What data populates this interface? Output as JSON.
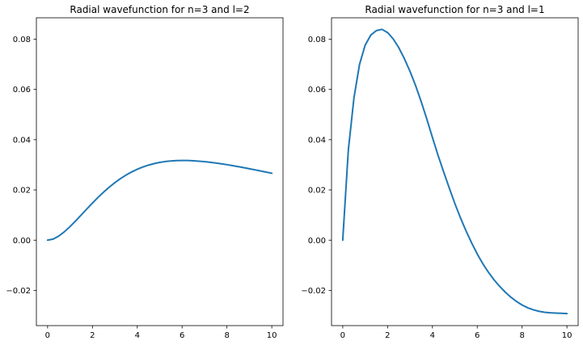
{
  "chart_data": [
    {
      "type": "line",
      "title": "Radial wavefunction for n=3 and l=2",
      "xlabel": "",
      "ylabel": "",
      "xlim": [
        -0.5,
        10.5
      ],
      "ylim": [
        -0.034,
        0.0885
      ],
      "xticks": [
        0,
        2,
        4,
        6,
        8,
        10
      ],
      "yticks": [
        -0.02,
        0.0,
        0.02,
        0.04,
        0.06,
        0.08
      ],
      "xtick_labels": [
        "0",
        "2",
        "4",
        "6",
        "8",
        "10"
      ],
      "ytick_labels": [
        "−0.02",
        "0.00",
        "0.02",
        "0.04",
        "0.06",
        "0.08"
      ],
      "grid": false,
      "color": "#1f77b4",
      "series": [
        {
          "x": [
            0,
            0.25,
            0.5,
            0.75,
            1,
            1.25,
            1.5,
            1.75,
            2,
            2.25,
            2.5,
            2.75,
            3,
            3.25,
            3.5,
            3.75,
            4,
            4.25,
            4.5,
            4.75,
            5,
            5.25,
            5.5,
            5.75,
            6,
            6.25,
            6.5,
            6.75,
            7,
            7.25,
            7.5,
            7.75,
            8,
            8.25,
            8.5,
            8.75,
            9,
            9.25,
            9.5,
            9.75,
            10
          ],
          "y": [
            0,
            0.00045,
            0.00165,
            0.00336,
            0.00541,
            0.00767,
            0.01003,
            0.01242,
            0.01477,
            0.01702,
            0.01914,
            0.0211,
            0.02288,
            0.02449,
            0.02591,
            0.02715,
            0.02822,
            0.02912,
            0.02987,
            0.03047,
            0.03094,
            0.03129,
            0.03153,
            0.03167,
            0.03172,
            0.0317,
            0.0316,
            0.03145,
            0.03125,
            0.031,
            0.03071,
            0.03039,
            0.03004,
            0.02966,
            0.02927,
            0.02885,
            0.02843,
            0.02799,
            0.02754,
            0.02709,
            0.02663
          ]
        }
      ]
    },
    {
      "type": "line",
      "title": "Radial wavefunction for n=3 and l=1",
      "xlabel": "",
      "ylabel": "",
      "xlim": [
        -0.5,
        10.5
      ],
      "ylim": [
        -0.034,
        0.0885
      ],
      "xticks": [
        0,
        2,
        4,
        6,
        8,
        10
      ],
      "yticks": [
        -0.02,
        0.0,
        0.02,
        0.04,
        0.06,
        0.08
      ],
      "xtick_labels": [
        "0",
        "2",
        "4",
        "6",
        "8",
        "10"
      ],
      "ytick_labels": [
        "−0.02",
        "0.00",
        "0.02",
        "0.04",
        "0.06",
        "0.08"
      ],
      "grid": false,
      "color": "#1f77b4",
      "series": [
        {
          "x": [
            0,
            0.25,
            0.5,
            0.75,
            1,
            1.25,
            1.5,
            1.75,
            2,
            2.25,
            2.5,
            2.75,
            3,
            3.25,
            3.5,
            3.75,
            4,
            4.25,
            4.5,
            4.75,
            5,
            5.25,
            5.5,
            5.75,
            6,
            6.25,
            6.5,
            6.75,
            7,
            7.25,
            7.5,
            7.75,
            8,
            8.25,
            8.5,
            8.75,
            9,
            9.25,
            9.5,
            9.75,
            10
          ],
          "y": [
            0,
            0.0359,
            0.0566,
            0.07,
            0.0776,
            0.0816,
            0.0834,
            0.0839,
            0.0826,
            0.0801,
            0.0766,
            0.0722,
            0.0672,
            0.0615,
            0.0551,
            0.0482,
            0.0409,
            0.0338,
            0.0272,
            0.0208,
            0.0146,
            0.0089,
            0.0037,
            -0.0011,
            -0.0055,
            -0.0094,
            -0.0128,
            -0.0158,
            -0.0184,
            -0.0207,
            -0.0227,
            -0.0244,
            -0.0258,
            -0.0269,
            -0.0277,
            -0.0283,
            -0.0287,
            -0.0289,
            -0.029,
            -0.0291,
            -0.0292
          ]
        }
      ]
    }
  ]
}
